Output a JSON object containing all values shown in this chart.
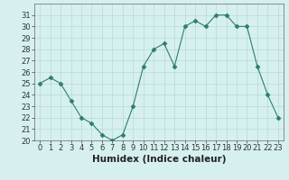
{
  "x": [
    0,
    1,
    2,
    3,
    4,
    5,
    6,
    7,
    8,
    9,
    10,
    11,
    12,
    13,
    14,
    15,
    16,
    17,
    18,
    19,
    20,
    21,
    22,
    23
  ],
  "y": [
    25,
    25.5,
    25,
    23.5,
    22,
    21.5,
    20.5,
    20,
    20.5,
    23,
    26.5,
    28,
    28.5,
    26.5,
    30,
    30.5,
    30,
    31,
    31,
    30,
    30,
    26.5,
    24,
    22
  ],
  "line_color": "#2e7d6e",
  "marker": "D",
  "marker_size": 2.5,
  "bg_color": "#d6f0f0",
  "grid_color": "#b8d8d8",
  "xlabel": "Humidex (Indice chaleur)",
  "xlim": [
    -0.5,
    23.5
  ],
  "ylim": [
    20,
    32
  ],
  "yticks": [
    20,
    21,
    22,
    23,
    24,
    25,
    26,
    27,
    28,
    29,
    30,
    31
  ],
  "xticks": [
    0,
    1,
    2,
    3,
    4,
    5,
    6,
    7,
    8,
    9,
    10,
    11,
    12,
    13,
    14,
    15,
    16,
    17,
    18,
    19,
    20,
    21,
    22,
    23
  ],
  "tick_fontsize": 6,
  "xlabel_fontsize": 7.5
}
